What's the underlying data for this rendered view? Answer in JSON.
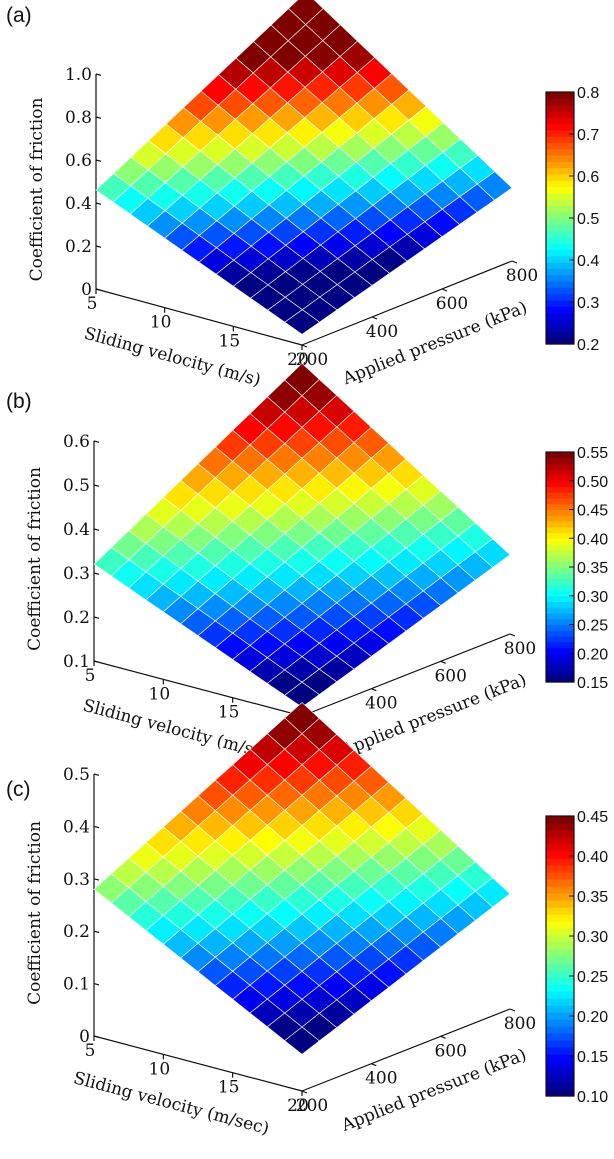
{
  "chart_data": [
    {
      "panel_label": "(a)",
      "type": "surface",
      "xlabel": "Sliding velocity (m/s)",
      "ylabel": "Applied pressure (kPa)",
      "zlabel": "Coefficient of friction",
      "x_ticks": [
        "5",
        "10",
        "15",
        "20"
      ],
      "y_ticks": [
        "200",
        "400",
        "600",
        "800"
      ],
      "z_ticks": [
        "0",
        "0.2",
        "0.4",
        "0.6",
        "0.8",
        "1.0"
      ],
      "colorbar_ticks": [
        "0.8",
        "0.7",
        "0.6",
        "0.5",
        "0.4",
        "0.3",
        "0.2"
      ],
      "xlim": [
        5,
        20
      ],
      "ylim": [
        200,
        800
      ],
      "zlim": [
        0,
        1.0
      ],
      "clim": [
        0.2,
        0.8
      ],
      "corners": {
        "v5_p200": 0.46,
        "v5_p800": 0.99,
        "v20_p200": 0.05,
        "v20_p800": 0.34
      }
    },
    {
      "panel_label": "(b)",
      "type": "surface",
      "xlabel": "Sliding velocity (m/s)",
      "ylabel": "Applied pressure (kPa)",
      "zlabel": "Coefficient of friction",
      "x_ticks": [
        "5",
        "10",
        "15",
        "20"
      ],
      "y_ticks": [
        "200",
        "400",
        "600",
        "800"
      ],
      "z_ticks": [
        "0.1",
        "0.2",
        "0.3",
        "0.4",
        "0.5",
        "0.6"
      ],
      "colorbar_ticks": [
        "0.55",
        "0.50",
        "0.45",
        "0.40",
        "0.35",
        "0.30",
        "0.25",
        "0.20",
        "0.15"
      ],
      "xlim": [
        5,
        20
      ],
      "ylim": [
        200,
        800
      ],
      "zlim": [
        0.1,
        0.6
      ],
      "clim": [
        0.15,
        0.55
      ],
      "corners": {
        "v5_p200": 0.32,
        "v5_p800": 0.59,
        "v20_p200": 0.12,
        "v20_p800": 0.28
      }
    },
    {
      "panel_label": "(c)",
      "type": "surface",
      "xlabel": "Sliding velocity (m/sec)",
      "ylabel": "Applied pressure (kPa)",
      "zlabel": "Coefficient of friction",
      "x_ticks": [
        "5",
        "10",
        "15",
        "20"
      ],
      "y_ticks": [
        "200",
        "400",
        "600",
        "800"
      ],
      "z_ticks": [
        "0",
        "0.1",
        "0.2",
        "0.3",
        "0.4",
        "0.5"
      ],
      "colorbar_ticks": [
        "0.45",
        "0.40",
        "0.35",
        "0.30",
        "0.25",
        "0.20",
        "0.15",
        "0.10"
      ],
      "xlim": [
        5,
        20
      ],
      "ylim": [
        200,
        800
      ],
      "zlim": [
        0,
        0.5
      ],
      "clim": [
        0.1,
        0.45
      ],
      "corners": {
        "v5_p200": 0.28,
        "v5_p800": 0.48,
        "v20_p200": 0.07,
        "v20_p800": 0.22
      }
    }
  ]
}
